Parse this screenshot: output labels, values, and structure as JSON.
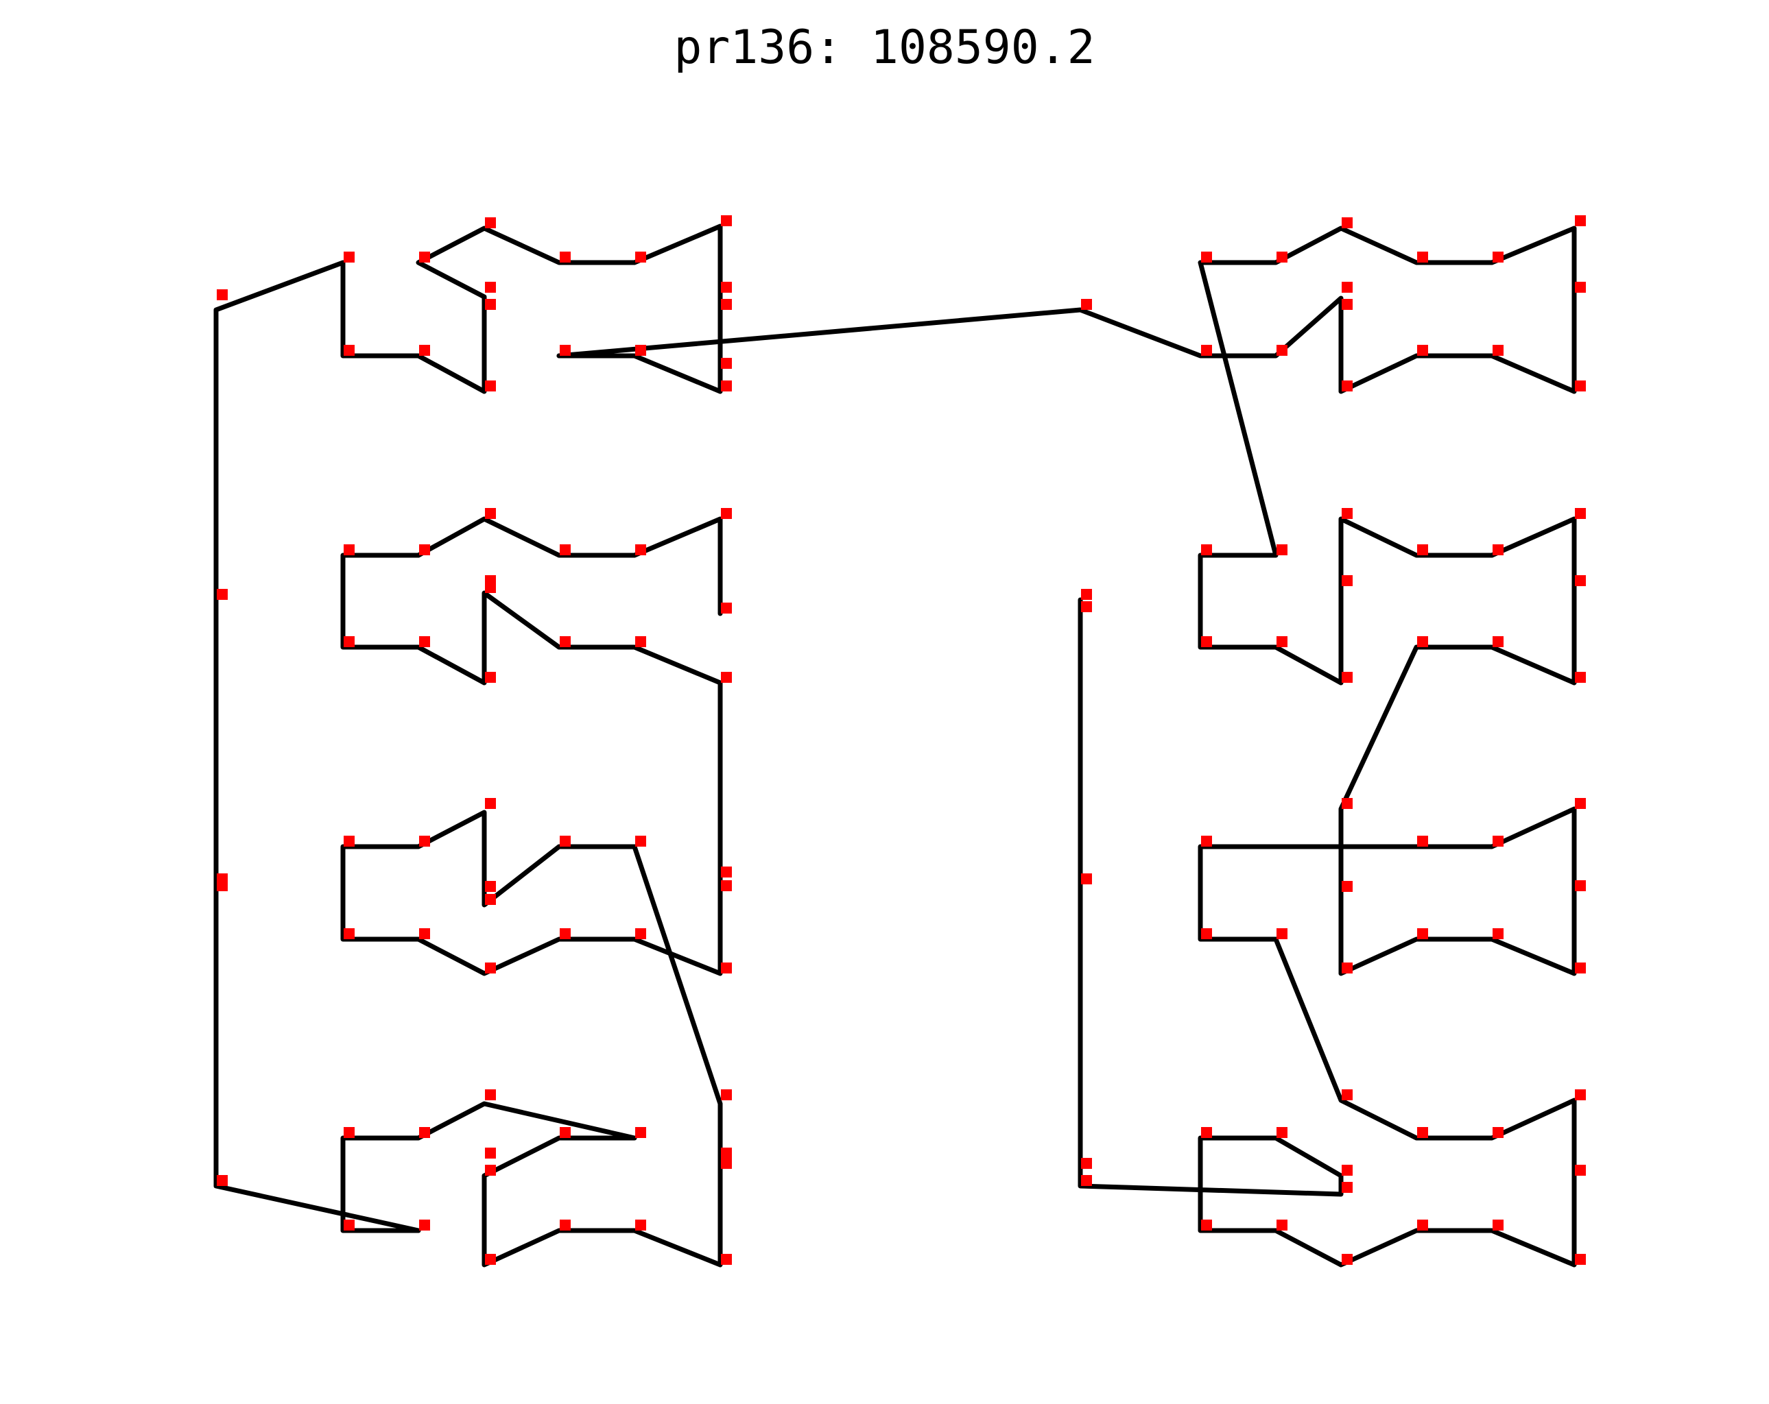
{
  "chart_data": {
    "type": "scatter",
    "title": "pr136: 108590.2",
    "xlabel": "",
    "ylabel": "",
    "axes_visible": false,
    "grid": false,
    "colors": {
      "route": "#000000",
      "points": "#ff0000"
    },
    "route_closed": false,
    "points": [
      [
        315,
        438
      ],
      [
        500,
        383
      ],
      [
        500,
        519
      ],
      [
        610,
        519
      ],
      [
        706,
        571
      ],
      [
        706,
        452
      ],
      [
        610,
        383
      ],
      [
        706,
        333
      ],
      [
        815,
        383
      ],
      [
        925,
        383
      ],
      [
        1050,
        330
      ],
      [
        1050,
        571
      ],
      [
        925,
        519
      ],
      [
        815,
        519
      ],
      [
        1575,
        452
      ],
      [
        1750,
        519
      ],
      [
        1860,
        519
      ],
      [
        1955,
        571
      ],
      [
        1955,
        452
      ],
      [
        1860,
        383
      ],
      [
        1750,
        383
      ],
      [
        1955,
        333
      ],
      [
        2065,
        383
      ],
      [
        2175,
        383
      ],
      [
        2295,
        330
      ],
      [
        2295,
        571
      ],
      [
        2175,
        519
      ],
      [
        2065,
        519
      ],
      [
        1955,
        571
      ],
      [
        1955,
        452
      ],
      [
        1860,
        519
      ],
      [
        1750,
        383
      ],
      [
        1860,
        810
      ],
      [
        1750,
        810
      ],
      [
        1750,
        944
      ],
      [
        1860,
        944
      ],
      [
        1955,
        996
      ],
      [
        1955,
        757
      ],
      [
        2065,
        810
      ],
      [
        2175,
        810
      ],
      [
        2295,
        757
      ],
      [
        2295,
        996
      ],
      [
        2175,
        944
      ],
      [
        2065,
        944
      ],
      [
        1955,
        1180
      ],
      [
        1750,
        1235
      ],
      [
        1750,
        1370
      ],
      [
        1860,
        1370
      ],
      [
        1955,
        1420
      ],
      [
        1955,
        1180
      ],
      [
        2065,
        1235
      ],
      [
        2175,
        1235
      ],
      [
        2295,
        1180
      ],
      [
        2295,
        1420
      ],
      [
        2175,
        1370
      ],
      [
        2065,
        1370
      ],
      [
        1955,
        1420
      ],
      [
        1860,
        1370
      ],
      [
        1955,
        1605
      ],
      [
        2065,
        1660
      ],
      [
        2175,
        1660
      ],
      [
        2295,
        1605
      ],
      [
        2295,
        1845
      ],
      [
        2175,
        1795
      ],
      [
        2065,
        1795
      ],
      [
        1955,
        1845
      ],
      [
        1860,
        1795
      ],
      [
        1750,
        1795
      ],
      [
        1750,
        1660
      ],
      [
        1860,
        1660
      ],
      [
        1955,
        1715
      ],
      [
        1955,
        1740
      ],
      [
        1575,
        1730
      ],
      [
        1575,
        875
      ],
      [
        1050,
        895
      ],
      [
        1050,
        1420
      ],
      [
        925,
        1370
      ],
      [
        815,
        1370
      ],
      [
        706,
        1420
      ],
      [
        610,
        1370
      ],
      [
        500,
        1370
      ],
      [
        500,
        1235
      ],
      [
        610,
        1235
      ],
      [
        706,
        1180
      ],
      [
        706,
        1320
      ],
      [
        815,
        1235
      ],
      [
        925,
        1235
      ],
      [
        1050,
        1605
      ],
      [
        1050,
        1845
      ],
      [
        925,
        1795
      ],
      [
        815,
        1795
      ],
      [
        706,
        1845
      ],
      [
        706,
        1715
      ],
      [
        815,
        1660
      ],
      [
        925,
        1660
      ],
      [
        706,
        1605
      ],
      [
        610,
        1660
      ],
      [
        500,
        1660
      ],
      [
        500,
        1795
      ],
      [
        610,
        1795
      ],
      [
        315,
        1730
      ],
      [
        315,
        1300
      ],
      [
        315,
        875
      ],
      [
        500,
        810
      ],
      [
        500,
        944
      ],
      [
        610,
        944
      ],
      [
        706,
        996
      ],
      [
        706,
        865
      ],
      [
        815,
        944
      ],
      [
        925,
        944
      ],
      [
        1050,
        996
      ],
      [
        1050,
        757
      ],
      [
        925,
        810
      ],
      [
        815,
        810
      ],
      [
        706,
        757
      ],
      [
        610,
        810
      ],
      [
        1050,
        452
      ],
      [
        1050,
        427
      ],
      [
        1050,
        538
      ],
      [
        1575,
        893
      ],
      [
        1575,
        1290
      ],
      [
        1575,
        1705
      ],
      [
        1050,
        1705
      ],
      [
        706,
        1690
      ],
      [
        315,
        1290
      ],
      [
        706,
        1301
      ],
      [
        706,
        427
      ],
      [
        706,
        855
      ],
      [
        1955,
        427
      ],
      [
        1955,
        855
      ],
      [
        2295,
        427
      ],
      [
        2295,
        855
      ],
      [
        2295,
        1300
      ],
      [
        2295,
        1715
      ],
      [
        1955,
        1301
      ],
      [
        1050,
        1280
      ],
      [
        1050,
        1300
      ],
      [
        1050,
        1690
      ]
    ],
    "route": [
      [
        815,
        519
      ],
      [
        1575,
        452
      ],
      [
        1750,
        519
      ],
      [
        1860,
        519
      ],
      [
        1955,
        471
      ],
      [
        1955,
        571
      ],
      [
        2065,
        519
      ],
      [
        2175,
        519
      ],
      [
        2295,
        571
      ],
      [
        2295,
        333
      ],
      [
        2175,
        383
      ],
      [
        2065,
        383
      ],
      [
        1955,
        333
      ],
      [
        1860,
        383
      ],
      [
        1750,
        383
      ],
      [
        1860,
        810
      ],
      [
        1750,
        810
      ],
      [
        1750,
        944
      ],
      [
        1860,
        944
      ],
      [
        1955,
        996
      ],
      [
        1955,
        757
      ],
      [
        2065,
        810
      ],
      [
        2175,
        810
      ],
      [
        2295,
        757
      ],
      [
        2295,
        996
      ],
      [
        2175,
        944
      ],
      [
        2065,
        944
      ],
      [
        1955,
        1180
      ],
      [
        1955,
        1420
      ],
      [
        2065,
        1370
      ],
      [
        2175,
        1370
      ],
      [
        2295,
        1420
      ],
      [
        2295,
        1180
      ],
      [
        2175,
        1235
      ],
      [
        2065,
        1235
      ],
      [
        1955,
        1235
      ],
      [
        1860,
        1235
      ],
      [
        1750,
        1235
      ],
      [
        1750,
        1370
      ],
      [
        1860,
        1370
      ],
      [
        1955,
        1605
      ],
      [
        2065,
        1660
      ],
      [
        2175,
        1660
      ],
      [
        2295,
        1605
      ],
      [
        2295,
        1845
      ],
      [
        2175,
        1795
      ],
      [
        2065,
        1795
      ],
      [
        1955,
        1845
      ],
      [
        1860,
        1795
      ],
      [
        1750,
        1795
      ],
      [
        1750,
        1660
      ],
      [
        1860,
        1660
      ],
      [
        1955,
        1715
      ],
      [
        1955,
        1742
      ],
      [
        1575,
        1730
      ],
      [
        1575,
        875
      ],
      [
        1575,
        1730
      ],
      [
        1955,
        1742
      ],
      [
        1955,
        1715
      ],
      [
        1860,
        1660
      ],
      [
        1750,
        1660
      ],
      [
        1750,
        1795
      ],
      [
        1860,
        1795
      ],
      [
        1955,
        1845
      ],
      [
        2065,
        1795
      ],
      [
        2175,
        1795
      ],
      [
        2295,
        1845
      ],
      [
        2295,
        1605
      ],
      [
        2175,
        1660
      ],
      [
        2065,
        1660
      ],
      [
        1955,
        1605
      ],
      [
        1860,
        1370
      ],
      [
        1750,
        1370
      ],
      [
        1750,
        1235
      ],
      [
        2295,
        1235
      ]
    ],
    "path": [
      [
        815,
        519
      ],
      [
        925,
        519
      ],
      [
        1050,
        571
      ],
      [
        1050,
        330
      ],
      [
        925,
        383
      ],
      [
        815,
        383
      ],
      [
        706,
        333
      ],
      [
        610,
        383
      ],
      [
        706,
        433
      ],
      [
        706,
        571
      ],
      [
        610,
        519
      ],
      [
        500,
        519
      ],
      [
        500,
        383
      ],
      [
        315,
        452
      ],
      [
        315,
        1730
      ],
      [
        610,
        1795
      ],
      [
        500,
        1795
      ],
      [
        500,
        1660
      ],
      [
        610,
        1660
      ],
      [
        706,
        1610
      ],
      [
        925,
        1660
      ],
      [
        815,
        1660
      ],
      [
        706,
        1715
      ],
      [
        706,
        1845
      ],
      [
        815,
        1795
      ],
      [
        925,
        1795
      ],
      [
        1050,
        1845
      ],
      [
        1050,
        1610
      ],
      [
        925,
        1235
      ],
      [
        815,
        1235
      ],
      [
        706,
        1320
      ],
      [
        706,
        1185
      ],
      [
        610,
        1235
      ],
      [
        500,
        1235
      ],
      [
        500,
        1370
      ],
      [
        610,
        1370
      ],
      [
        706,
        1420
      ],
      [
        815,
        1370
      ],
      [
        925,
        1370
      ],
      [
        1050,
        1420
      ],
      [
        1050,
        996
      ],
      [
        925,
        944
      ],
      [
        815,
        944
      ],
      [
        706,
        865
      ],
      [
        706,
        996
      ],
      [
        610,
        944
      ],
      [
        500,
        944
      ],
      [
        500,
        810
      ],
      [
        610,
        810
      ],
      [
        706,
        757
      ],
      [
        815,
        810
      ],
      [
        925,
        810
      ],
      [
        1050,
        757
      ],
      [
        1050,
        895
      ]
    ],
    "path_right": [
      [
        1575,
        875
      ],
      [
        1575,
        1730
      ],
      [
        1955,
        1742
      ],
      [
        1955,
        1715
      ],
      [
        1860,
        1660
      ],
      [
        1750,
        1660
      ],
      [
        1750,
        1795
      ],
      [
        1860,
        1795
      ],
      [
        1955,
        1845
      ],
      [
        2065,
        1795
      ],
      [
        2175,
        1795
      ],
      [
        2295,
        1845
      ],
      [
        2295,
        1605
      ],
      [
        2175,
        1660
      ],
      [
        2065,
        1660
      ],
      [
        1955,
        1605
      ],
      [
        1860,
        1370
      ],
      [
        1750,
        1370
      ],
      [
        1750,
        1235
      ],
      [
        1955,
        1235
      ],
      [
        2065,
        1235
      ],
      [
        2175,
        1235
      ],
      [
        2295,
        1180
      ],
      [
        2295,
        1420
      ],
      [
        2175,
        1370
      ],
      [
        2065,
        1370
      ],
      [
        1955,
        1420
      ],
      [
        1955,
        1180
      ],
      [
        2065,
        944
      ],
      [
        2175,
        944
      ],
      [
        2295,
        996
      ],
      [
        2295,
        757
      ],
      [
        2175,
        810
      ],
      [
        2065,
        810
      ],
      [
        1955,
        757
      ],
      [
        1955,
        996
      ],
      [
        1860,
        944
      ],
      [
        1750,
        944
      ],
      [
        1750,
        810
      ],
      [
        1860,
        810
      ],
      [
        1750,
        383
      ],
      [
        1860,
        383
      ],
      [
        1955,
        333
      ],
      [
        2065,
        383
      ],
      [
        2175,
        383
      ],
      [
        2295,
        333
      ],
      [
        2295,
        571
      ],
      [
        2175,
        519
      ],
      [
        2065,
        519
      ],
      [
        1955,
        571
      ],
      [
        1955,
        435
      ],
      [
        1860,
        519
      ],
      [
        1750,
        519
      ],
      [
        1575,
        452
      ],
      [
        815,
        519
      ]
    ]
  }
}
